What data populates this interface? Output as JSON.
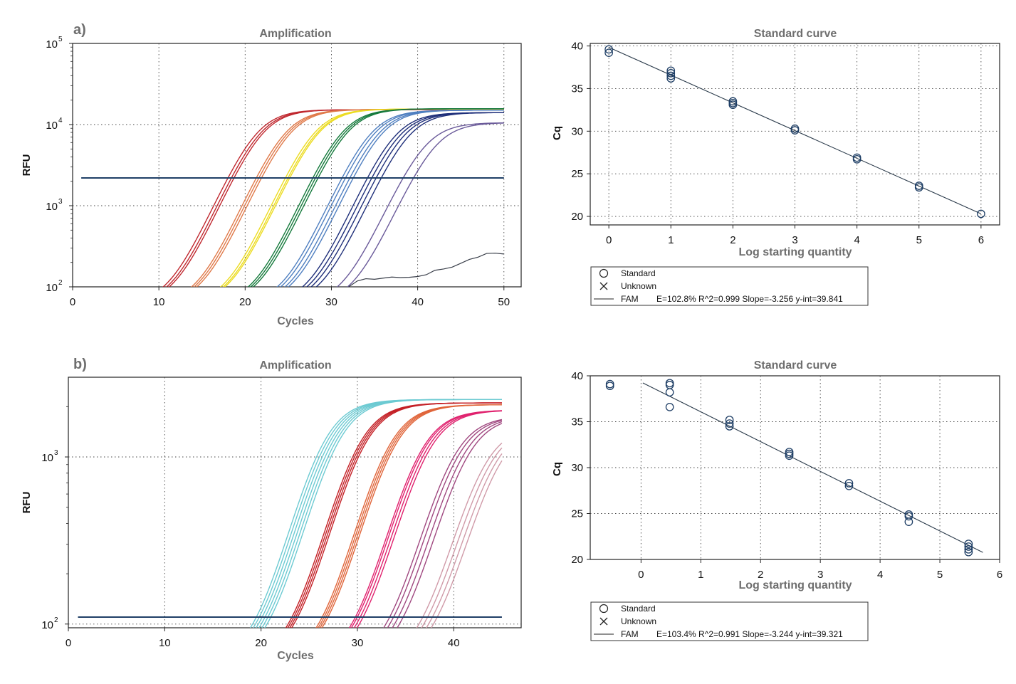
{
  "colors": {
    "frame": "#222222",
    "grid": "#444444",
    "threshold": "#1f3f66",
    "std_marker": "#1f3f66",
    "fit_line": "#2a3a4a",
    "a_series": [
      "#c0282f",
      "#e07a4a",
      "#ecdc22",
      "#157a3c",
      "#4f7fc0",
      "#1f2f7a",
      "#6a5a9a"
    ],
    "b_series": [
      "#6ccad2",
      "#c42026",
      "#e0653a",
      "#e0226e",
      "#a04880",
      "#d09aa8"
    ]
  },
  "chart_data": [
    {
      "panel": "a)",
      "type": "line",
      "title": "Amplification",
      "xlabel": "Cycles",
      "ylabel": "RFU",
      "x_ticks": [
        "0",
        "10",
        "20",
        "30",
        "40",
        "50"
      ],
      "xlim": [
        0,
        52
      ],
      "y_scale": "log",
      "ylim": [
        100,
        100000
      ],
      "y_ticks": [
        {
          "base": "10",
          "exp": "2"
        },
        {
          "base": "10",
          "exp": "3"
        },
        {
          "base": "10",
          "exp": "4"
        },
        {
          "base": "10",
          "exp": "5"
        }
      ],
      "grid": true,
      "threshold": 2200,
      "cycles": [
        1,
        50
      ],
      "series": [
        {
          "color": 0,
          "plateau": 15200,
          "midpoints": [
            21.3,
            21.7,
            22.0
          ]
        },
        {
          "color": 1,
          "plateau": 15300,
          "midpoints": [
            24.6,
            24.9,
            25.2
          ]
        },
        {
          "color": 2,
          "plateau": 15500,
          "midpoints": [
            28.0,
            28.3,
            28.5
          ]
        },
        {
          "color": 3,
          "plateau": 15600,
          "midpoints": [
            31.2,
            31.5,
            31.8
          ]
        },
        {
          "color": 4,
          "plateau": 15000,
          "midpoints": [
            34.5,
            34.9,
            35.4,
            35.8
          ]
        },
        {
          "color": 5,
          "plateau": 14000,
          "midpoints": [
            37.3,
            37.8,
            38.3,
            38.9
          ]
        },
        {
          "color": 6,
          "plateau": 10500,
          "midpoints": [
            40.8,
            42.0
          ]
        }
      ],
      "noise_curve": {
        "x": [
          32,
          33,
          34,
          35,
          36,
          37,
          38,
          39,
          40,
          41,
          42,
          43,
          44,
          45,
          46,
          47,
          48,
          49,
          50
        ],
        "y": [
          100,
          118,
          126,
          124,
          128,
          132,
          130,
          131,
          134,
          141,
          160,
          166,
          175,
          195,
          218,
          232,
          258,
          260,
          254
        ]
      }
    },
    {
      "panel": "a)",
      "type": "scatter",
      "title": "Standard curve",
      "xlabel": "Log starting quantity",
      "ylabel": "Cq",
      "x_ticks": [
        "0",
        "1",
        "2",
        "3",
        "4",
        "5",
        "6"
      ],
      "xlim": [
        -0.3,
        6.3
      ],
      "y_ticks": [
        "20",
        "25",
        "30",
        "35",
        "40"
      ],
      "ylim": [
        19,
        40.3
      ],
      "grid": true,
      "points": [
        [
          0,
          39.2
        ],
        [
          0,
          39.6
        ],
        [
          1,
          36.2
        ],
        [
          1,
          36.5
        ],
        [
          1,
          36.8
        ],
        [
          1,
          37.1
        ],
        [
          2,
          33.1
        ],
        [
          2,
          33.3
        ],
        [
          2,
          33.5
        ],
        [
          3,
          30.1
        ],
        [
          3,
          30.3
        ],
        [
          4,
          26.7
        ],
        [
          4,
          26.9
        ],
        [
          5,
          23.4
        ],
        [
          5,
          23.6
        ],
        [
          6,
          20.3
        ]
      ],
      "fit": {
        "slope": -3.256,
        "intercept": 39.841,
        "x_range": [
          0,
          6
        ]
      },
      "legend": [
        {
          "marker": "circle",
          "label": "Standard"
        },
        {
          "marker": "cross",
          "label": "Unknown"
        },
        {
          "marker": "line",
          "label": "FAM",
          "stats": "E=102.8% R^2=0.999 Slope=-3.256 y-int=39.841"
        }
      ]
    },
    {
      "panel": "b)",
      "type": "line",
      "title": "Amplification",
      "xlabel": "Cycles",
      "ylabel": "RFU",
      "x_ticks": [
        "0",
        "10",
        "20",
        "30",
        "40"
      ],
      "xlim": [
        0,
        47
      ],
      "y_scale": "log",
      "ylim": [
        95,
        3000
      ],
      "y_ticks": [
        {
          "base": "10",
          "exp": "2"
        },
        {
          "base": "10",
          "exp": "3"
        }
      ],
      "grid": true,
      "threshold": 110,
      "cycles": [
        1,
        45
      ],
      "series": [
        {
          "color": 0,
          "plateau": 2150,
          "midpoints": [
            26.2,
            26.5,
            26.8,
            27.1,
            27.4,
            27.7
          ]
        },
        {
          "color": 1,
          "plateau": 2050,
          "midpoints": [
            29.8,
            30.0,
            30.2,
            30.4
          ]
        },
        {
          "color": 2,
          "plateau": 2000,
          "midpoints": [
            32.9,
            33.1,
            33.3,
            33.5
          ]
        },
        {
          "color": 3,
          "plateau": 1850,
          "midpoints": [
            36.2,
            36.4,
            36.7,
            37.0
          ]
        },
        {
          "color": 4,
          "plateau": 1700,
          "midpoints": [
            39.6,
            40.0,
            40.5,
            41.0
          ]
        },
        {
          "color": 5,
          "plateau": 1500,
          "midpoints": [
            42.8,
            43.3,
            43.8,
            44.3
          ]
        }
      ]
    },
    {
      "panel": "b)",
      "type": "scatter",
      "title": "Standard curve",
      "xlabel": "Log starting quantity",
      "ylabel": "Cq",
      "x_ticks": [
        "0",
        "1",
        "2",
        "3",
        "4",
        "5",
        "6"
      ],
      "xlim": [
        -0.85,
        6
      ],
      "y_ticks": [
        "20",
        "25",
        "30",
        "35",
        "40"
      ],
      "ylim": [
        20,
        40
      ],
      "grid": true,
      "points": [
        [
          -0.52,
          38.9
        ],
        [
          -0.52,
          39.1
        ],
        [
          0.48,
          36.6
        ],
        [
          0.48,
          38.2
        ],
        [
          0.48,
          39.0
        ],
        [
          0.48,
          39.2
        ],
        [
          1.48,
          34.5
        ],
        [
          1.48,
          34.8
        ],
        [
          1.48,
          35.2
        ],
        [
          2.48,
          31.3
        ],
        [
          2.48,
          31.5
        ],
        [
          2.48,
          31.7
        ],
        [
          3.48,
          28.0
        ],
        [
          3.48,
          28.3
        ],
        [
          4.48,
          24.1
        ],
        [
          4.48,
          24.7
        ],
        [
          4.48,
          24.9
        ],
        [
          5.48,
          20.8
        ],
        [
          5.48,
          21.1
        ],
        [
          5.48,
          21.4
        ],
        [
          5.48,
          21.7
        ]
      ],
      "fit": {
        "slope": -3.244,
        "intercept": 39.321,
        "x_range": [
          0.03,
          5.72
        ]
      },
      "legend": [
        {
          "marker": "circle",
          "label": "Standard"
        },
        {
          "marker": "cross",
          "label": "Unknown"
        },
        {
          "marker": "line",
          "label": "FAM",
          "stats": "E=103.4% R^2=0.991 Slope=-3.244 y-int=39.321"
        }
      ]
    }
  ]
}
